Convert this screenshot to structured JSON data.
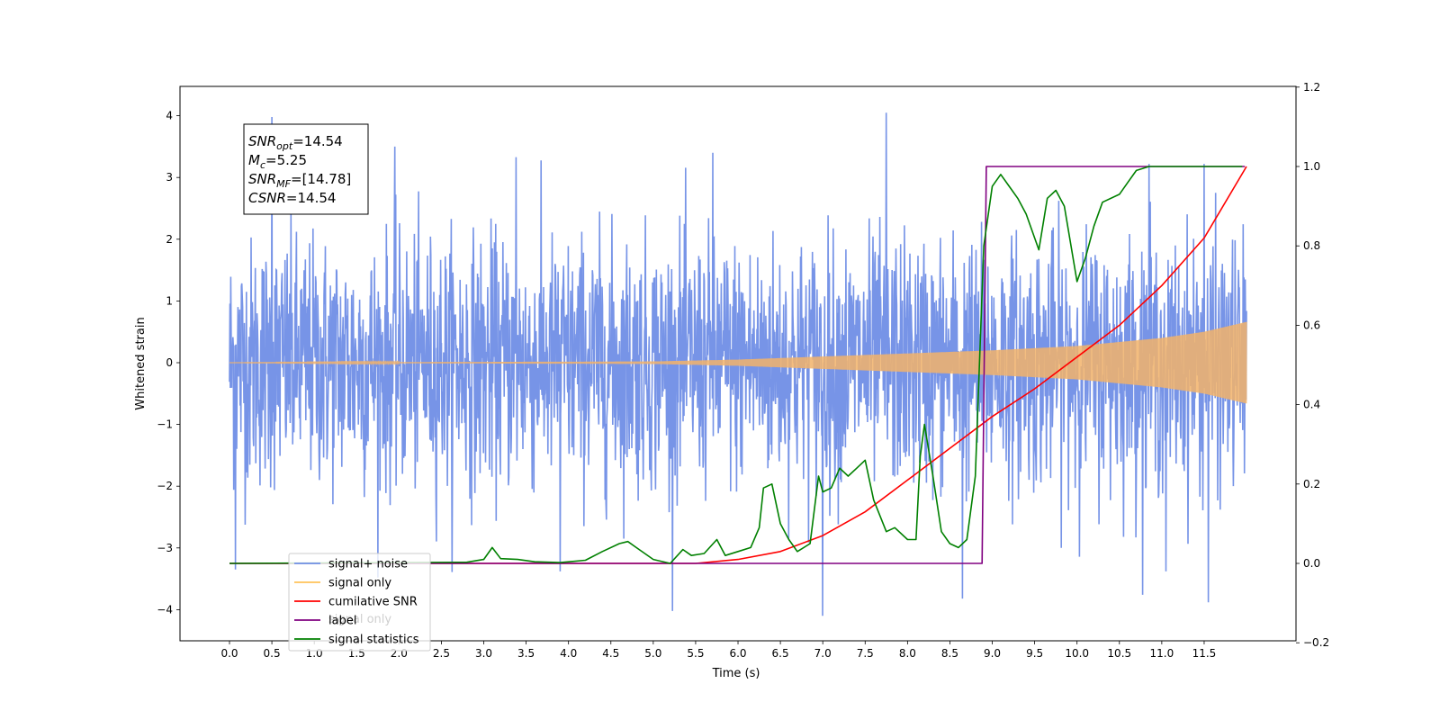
{
  "chart_data": {
    "type": "line",
    "xlabel": "Time (s)",
    "ylabel": "Whitened strain",
    "x_ticks": [
      "0.0",
      "0.5",
      "1.0",
      "1.5",
      "2.0",
      "2.5",
      "3.0",
      "3.5",
      "4.0",
      "4.5",
      "5.0",
      "5.5",
      "6.0",
      "6.5",
      "7.0",
      "7.5",
      "8.0",
      "8.5",
      "9.0",
      "9.5",
      "10.0",
      "10.5",
      "11.0",
      "11.5"
    ],
    "y_left_ticks": [
      "4",
      "3",
      "2",
      "1",
      "0",
      "−1",
      "−2",
      "−3",
      "−4"
    ],
    "y_right_ticks": [
      "1.2",
      "1.0",
      "0.8",
      "0.6",
      "0.4",
      "0.2",
      "0.0",
      "−0.2"
    ],
    "xlim": [
      -0.3,
      12.3
    ],
    "ylim_left": [
      -4.5,
      4.45
    ],
    "ylim_right": [
      -0.2,
      1.2
    ],
    "annotation": {
      "lines": [
        {
          "sym": "SNR",
          "sub": "opt",
          "text": "=14.54"
        },
        {
          "sym": "M",
          "sub": "c",
          "text": "=5.25"
        },
        {
          "sym": "SNR",
          "sub": "MF",
          "text": "=[14.78]"
        },
        {
          "sym": "CSNR",
          "sub": "",
          "text": "=14.54"
        }
      ]
    },
    "legend": {
      "placement": "lower-left",
      "entries": [
        {
          "label": "signal+ noise",
          "color": "#7090e6"
        },
        {
          "label": "signal only",
          "color": "#ffc25a"
        },
        {
          "label": "cumilative SNR",
          "color": "#ff0000"
        },
        {
          "label": "label",
          "color": "#800080"
        },
        {
          "label": "signal statistics",
          "color": "#008000"
        }
      ],
      "hidden_label": "signal only"
    },
    "series": [
      {
        "name": "signal+ noise",
        "axis": "left",
        "color": "#6b8be5",
        "noise_envelope_mean_std": 1.0,
        "spikes": [
          [
            0.5,
            3.98
          ],
          [
            0.07,
            -3.35
          ],
          [
            3.9,
            -3.38
          ],
          [
            7.0,
            -4.1
          ],
          [
            7.75,
            4.05
          ],
          [
            8.65,
            -3.82
          ],
          [
            11.55,
            -3.88
          ],
          [
            11.05,
            -3.38
          ],
          [
            1.95,
            3.5
          ],
          [
            3.38,
            3.33
          ],
          [
            5.7,
            3.4
          ],
          [
            10.85,
            3.22
          ],
          [
            11.5,
            3.22
          ]
        ]
      },
      {
        "name": "signal only",
        "axis": "left",
        "color": "#f2b36a",
        "x": [
          0.0,
          5.0,
          6.0,
          7.0,
          8.0,
          9.0,
          10.0,
          11.0,
          11.5,
          12.0
        ],
        "amplitude": [
          0.0,
          0.02,
          0.05,
          0.1,
          0.15,
          0.2,
          0.27,
          0.4,
          0.5,
          0.66
        ]
      },
      {
        "name": "cumilative SNR",
        "axis": "right",
        "color": "#ff0000",
        "x": [
          0.0,
          5.5,
          6.0,
          6.5,
          7.0,
          7.5,
          8.0,
          8.5,
          9.0,
          9.5,
          10.0,
          10.5,
          11.0,
          11.5,
          12.0
        ],
        "y": [
          0.0,
          0.0,
          0.01,
          0.03,
          0.07,
          0.13,
          0.21,
          0.29,
          0.37,
          0.44,
          0.52,
          0.6,
          0.7,
          0.82,
          1.0
        ]
      },
      {
        "name": "label",
        "axis": "right",
        "color": "#800080",
        "x": [
          0.0,
          8.88,
          8.93,
          11.98
        ],
        "y": [
          0.0,
          0.0,
          1.0,
          1.0
        ]
      },
      {
        "name": "signal statistics",
        "axis": "right",
        "color": "#008000",
        "x": [
          0.0,
          2.8,
          3.0,
          3.1,
          3.2,
          3.4,
          3.6,
          3.9,
          4.2,
          4.4,
          4.6,
          4.7,
          4.8,
          5.0,
          5.2,
          5.35,
          5.45,
          5.6,
          5.75,
          5.85,
          6.0,
          6.15,
          6.25,
          6.3,
          6.4,
          6.5,
          6.6,
          6.7,
          6.85,
          6.95,
          7.0,
          7.1,
          7.2,
          7.3,
          7.4,
          7.5,
          7.6,
          7.75,
          7.85,
          8.0,
          8.1,
          8.15,
          8.2,
          8.3,
          8.4,
          8.5,
          8.6,
          8.7,
          8.8,
          8.9,
          9.0,
          9.1,
          9.2,
          9.3,
          9.4,
          9.55,
          9.65,
          9.75,
          9.85,
          10.0,
          10.1,
          10.2,
          10.3,
          10.5,
          10.6,
          10.7,
          10.85,
          11.95
        ],
        "y": [
          0.0,
          0.003,
          0.01,
          0.04,
          0.012,
          0.01,
          0.004,
          0.002,
          0.008,
          0.03,
          0.05,
          0.055,
          0.04,
          0.01,
          0.0,
          0.035,
          0.02,
          0.025,
          0.06,
          0.02,
          0.03,
          0.04,
          0.09,
          0.19,
          0.2,
          0.1,
          0.06,
          0.03,
          0.05,
          0.22,
          0.18,
          0.19,
          0.24,
          0.22,
          0.24,
          0.26,
          0.16,
          0.08,
          0.09,
          0.06,
          0.06,
          0.27,
          0.35,
          0.22,
          0.08,
          0.05,
          0.04,
          0.06,
          0.22,
          0.8,
          0.95,
          0.98,
          0.95,
          0.92,
          0.88,
          0.79,
          0.92,
          0.94,
          0.9,
          0.71,
          0.77,
          0.85,
          0.91,
          0.93,
          0.96,
          0.99,
          1.0,
          1.0
        ]
      }
    ]
  }
}
